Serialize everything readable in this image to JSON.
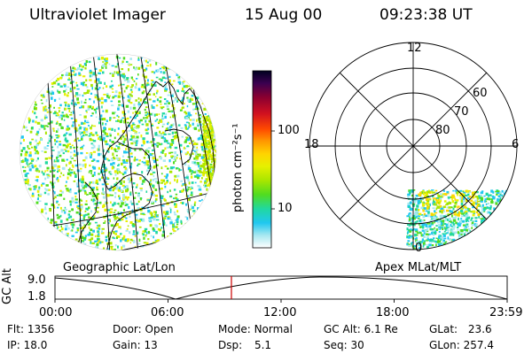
{
  "header": {
    "instrument": "Ultraviolet Imager",
    "date": "15 Aug 00",
    "time": "09:23:38 UT"
  },
  "colorbar": {
    "unit_label": "photon cm⁻²s⁻¹",
    "ticks": [
      "100",
      "10"
    ],
    "colors": [
      "#000020",
      "#3a0050",
      "#8a0030",
      "#d01020",
      "#ff4a00",
      "#ff9a00",
      "#ffd400",
      "#e6f000",
      "#a8e600",
      "#50dc20",
      "#20d8a0",
      "#20c8f0",
      "#a8e8f0",
      "#ffffff"
    ]
  },
  "polar": {
    "mlt_labels": {
      "top": "12",
      "left": "18",
      "right": "6",
      "bottom": "0"
    },
    "lat_labels": [
      "60",
      "70",
      "80"
    ]
  },
  "panel_labels": {
    "left": "Geographic Lat/Lon",
    "right": "Apex  MLat/MLT"
  },
  "altitude_plot": {
    "ylabel": "GC Alt",
    "yticks": [
      "9.0",
      "1.8"
    ],
    "xticks": [
      "00:00",
      "06:00",
      "12:00",
      "18:00",
      "23:59"
    ],
    "marker_time": "09:23:38"
  },
  "info": {
    "flt_label": "Flt:",
    "flt_value": "1356",
    "ip_label": "IP:",
    "ip_value": "18.0",
    "door_label": "Door:",
    "door_value": "Open",
    "gain_label": "Gain:",
    "gain_value": "13",
    "mode_label": "Mode:",
    "mode_value": "Normal",
    "dsp_label": "Dsp:",
    "dsp_value": "5.1",
    "gcalt_label": "GC Alt:",
    "gcalt_value": "6.1 Re",
    "seq_label": "Seq:",
    "seq_value": "30",
    "glat_label": "GLat:",
    "glat_value": "23.6",
    "glon_label": "GLon:",
    "glon_value": "257.4"
  }
}
